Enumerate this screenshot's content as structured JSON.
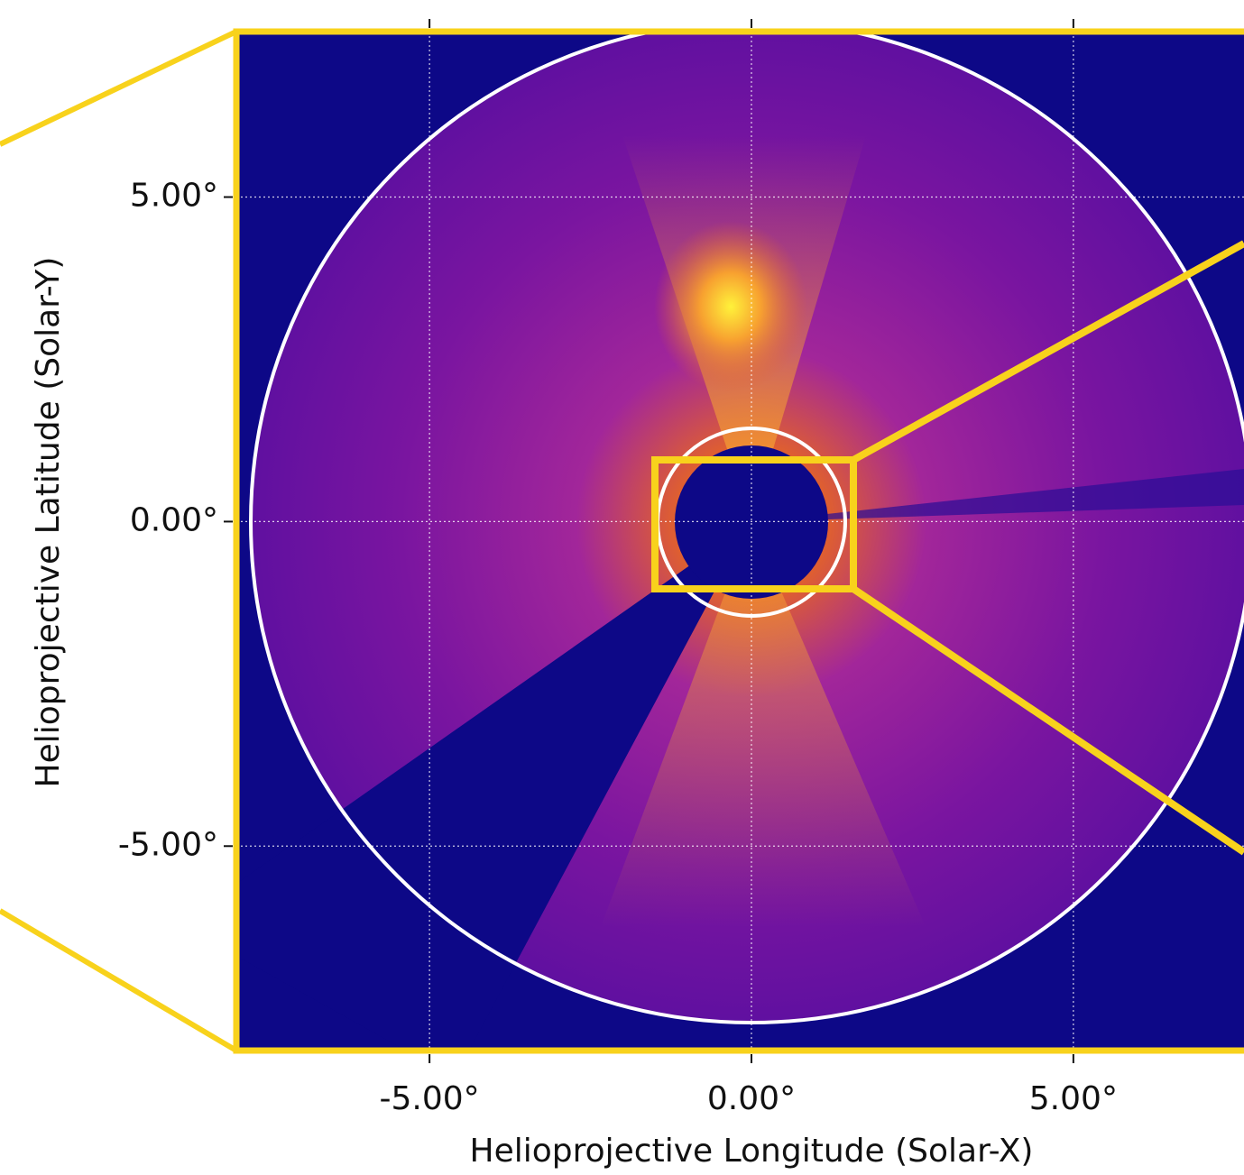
{
  "chart_data": {
    "type": "image",
    "x_label": "Helioprojective Longitude (Solar-X)",
    "y_label": "Helioprojective Latitude (Solar-Y)",
    "xlim": [
      -8.0,
      7.65
    ],
    "ylim": [
      -8.15,
      7.55
    ],
    "xticks": [
      {
        "value": -5,
        "label": "-5.00°"
      },
      {
        "value": 0,
        "label": "0.00°"
      },
      {
        "value": 5,
        "label": "5.00°"
      }
    ],
    "yticks": [
      {
        "value": -5,
        "label": "-5.00°"
      },
      {
        "value": 0,
        "label": "0.00°"
      },
      {
        "value": 5,
        "label": "5.00°"
      }
    ],
    "grid": true
  }
}
